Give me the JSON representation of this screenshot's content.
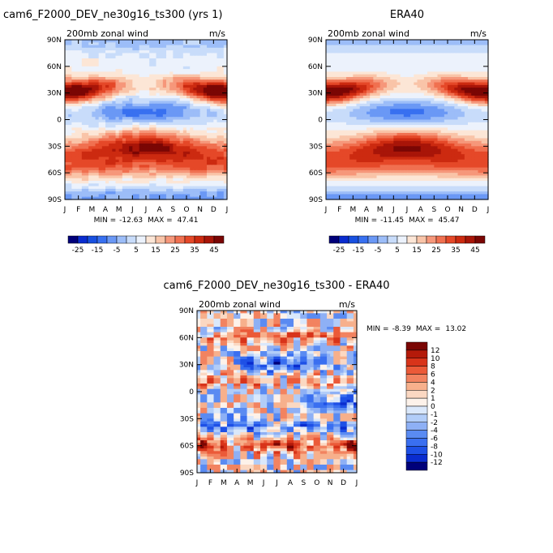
{
  "chart_data": [
    {
      "type": "heatmap",
      "title": "cam6_F2000_DEV_ne30g16_ts300 (yrs 1)",
      "subtitle": "200mb zonal wind",
      "units": "m/s",
      "x_ticks": [
        "J",
        "F",
        "M",
        "A",
        "M",
        "J",
        "J",
        "A",
        "S",
        "O",
        "N",
        "D",
        "J"
      ],
      "y_ticks": [
        "90N",
        "60N",
        "30N",
        "0",
        "30S",
        "60S",
        "90S"
      ],
      "stats": {
        "min_label": "MIN =",
        "min": "-12.63",
        "max_label": "MAX =",
        "max": "47.41"
      },
      "colorbar": {
        "orientation": "horizontal",
        "labels": [
          "-25",
          "-15",
          "-5",
          "5",
          "15",
          "25",
          "35",
          "45"
        ]
      },
      "features": [
        {
          "lat": 30,
          "month": 1.2,
          "value": 44
        },
        {
          "lat": 30,
          "month": 12.2,
          "value": 36
        },
        {
          "lat": 10,
          "month": 7.7,
          "value": -12
        },
        {
          "lat": -30,
          "month": 7.5,
          "value": 37
        },
        {
          "lat": -50,
          "month": 1.5,
          "value": 34
        },
        {
          "lat": 70,
          "month": 1,
          "value": 18
        }
      ]
    },
    {
      "type": "heatmap",
      "title": "ERA40",
      "subtitle": "200mb zonal wind",
      "units": "m/s",
      "x_ticks": [
        "J",
        "F",
        "M",
        "A",
        "M",
        "J",
        "J",
        "A",
        "S",
        "O",
        "N",
        "D",
        "J"
      ],
      "y_ticks": [
        "90N",
        "60N",
        "30N",
        "0",
        "30S",
        "60S",
        "90S"
      ],
      "stats": {
        "min_label": "MIN =",
        "min": "-11.45",
        "max_label": "MAX =",
        "max": "45.47"
      },
      "colorbar": {
        "orientation": "horizontal",
        "labels": [
          "-25",
          "-15",
          "-5",
          "5",
          "15",
          "25",
          "35",
          "45"
        ]
      },
      "features": [
        {
          "lat": 30,
          "month": 1.3,
          "value": 42
        },
        {
          "lat": 30,
          "month": 12.3,
          "value": 34
        },
        {
          "lat": 10,
          "month": 7.7,
          "value": -11
        },
        {
          "lat": -30,
          "month": 7.5,
          "value": 40
        },
        {
          "lat": -50,
          "month": 1.5,
          "value": 28
        }
      ]
    },
    {
      "type": "heatmap",
      "title": "cam6_F2000_DEV_ne30g16_ts300 - ERA40",
      "subtitle": "200mb zonal wind",
      "units": "m/s",
      "x_ticks": [
        "J",
        "F",
        "M",
        "A",
        "M",
        "J",
        "J",
        "A",
        "S",
        "O",
        "N",
        "D",
        "J"
      ],
      "y_ticks": [
        "90N",
        "60N",
        "30N",
        "0",
        "30S",
        "60S",
        "90S"
      ],
      "stats": {
        "min_label": "MIN =",
        "min": "-8.39",
        "max_label": "MAX =",
        "max": "13.02"
      },
      "colorbar": {
        "orientation": "vertical",
        "labels": [
          "12",
          "10",
          "8",
          "6",
          "4",
          "2",
          "1",
          "0",
          "-1",
          "-2",
          "-4",
          "-6",
          "-8",
          "-10",
          "-12"
        ]
      },
      "features": [
        {
          "lat": -60,
          "month": 1.3,
          "value": 12
        },
        {
          "lat": -60,
          "month": 10.5,
          "value": 10
        },
        {
          "lat": 30,
          "month": 7.5,
          "value": -8
        },
        {
          "lat": -10,
          "month": 12,
          "value": -7
        }
      ]
    }
  ],
  "colors": {
    "abs_scale": [
      "#00007a",
      "#0a2ccf",
      "#1850e0",
      "#3870f0",
      "#6a98f5",
      "#9cbdf8",
      "#c8dcfa",
      "#ecf2fc",
      "#fce6d6",
      "#f9c4a8",
      "#f6977a",
      "#f07050",
      "#e54828",
      "#cc2a10",
      "#a81508",
      "#7a0604"
    ],
    "diff_scale": [
      "#00007a",
      "#0a2ccf",
      "#1e50e6",
      "#3a6ff0",
      "#5a8bf2",
      "#8eb0f5",
      "#b2cdf8",
      "#dae8fb",
      "#fdf2ea",
      "#fbd8c2",
      "#f7b08c",
      "#f28360",
      "#eb5a38",
      "#d8341a",
      "#b41a0a",
      "#7a0604"
    ]
  }
}
